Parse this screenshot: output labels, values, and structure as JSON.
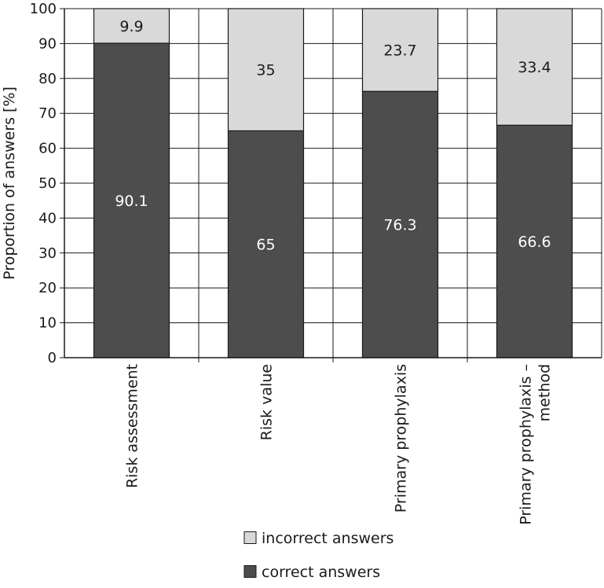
{
  "chart_data": {
    "type": "bar",
    "stacked": true,
    "ylabel": "Proportion of answers [%]",
    "ylim": [
      0,
      100
    ],
    "yticks": [
      0,
      10,
      20,
      30,
      40,
      50,
      60,
      70,
      80,
      90,
      100
    ],
    "grid": true,
    "categories": [
      [
        "Risk assessment"
      ],
      [
        "Risk value"
      ],
      [
        "Primary prophylaxis"
      ],
      [
        "Primary prophylaxis –",
        "method"
      ]
    ],
    "series": [
      {
        "name": "correct answers",
        "color": "#4d4d4d",
        "label_color": "#ffffff",
        "values": [
          90.1,
          65,
          76.3,
          66.6
        ]
      },
      {
        "name": "incorrect answers",
        "color": "#d9d9d9",
        "label_color": "#1a1a1a",
        "values": [
          9.9,
          35,
          23.7,
          33.4
        ]
      }
    ],
    "legend": {
      "position": "bottom",
      "order": [
        "incorrect answers",
        "correct answers"
      ]
    }
  }
}
